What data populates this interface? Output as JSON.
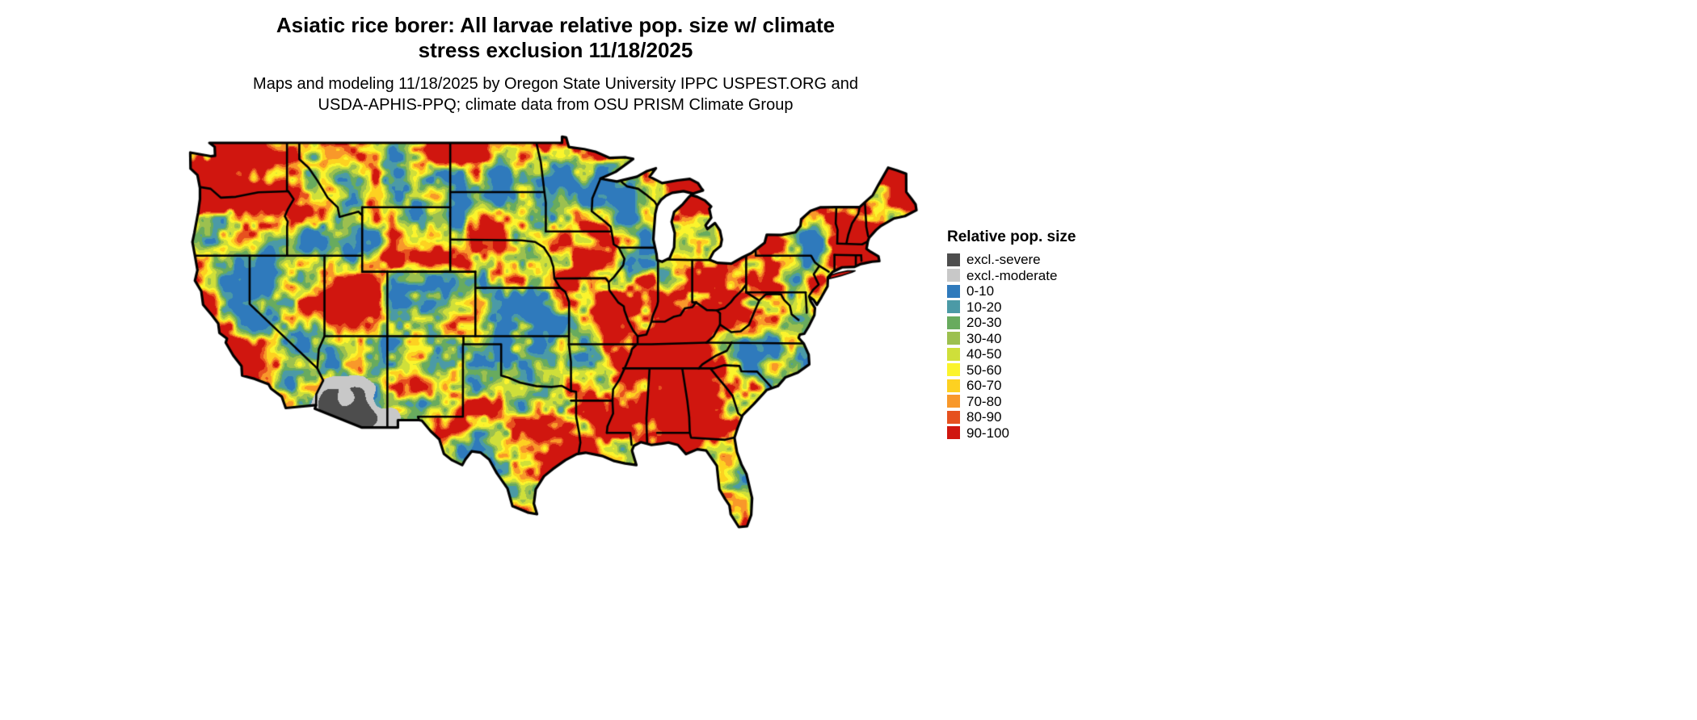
{
  "title": {
    "lines": [
      "Asiatic rice borer: All larvae relative pop. size w/ climate",
      "stress exclusion 11/18/2025"
    ]
  },
  "subtitle": {
    "lines": [
      "Maps and modeling 11/18/2025 by Oregon State University IPPC USPEST.ORG and",
      "USDA-APHIS-PPQ; climate data from OSU PRISM Climate Group"
    ]
  },
  "map": {
    "region": "Continental United States",
    "border_color": "#000000",
    "background": "#ffffff"
  },
  "legend": {
    "title": "Relative pop. size",
    "entries": [
      {
        "label": "excl.-severe",
        "color": "#4d4d4d"
      },
      {
        "label": "excl.-moderate",
        "color": "#c8c8c8"
      },
      {
        "label": "0-10",
        "color": "#2f7abc"
      },
      {
        "label": "10-20",
        "color": "#4b9aa6"
      },
      {
        "label": "20-30",
        "color": "#68ab5e"
      },
      {
        "label": "30-40",
        "color": "#9cc04f"
      },
      {
        "label": "40-50",
        "color": "#cfdf3a"
      },
      {
        "label": "50-60",
        "color": "#fbf42c"
      },
      {
        "label": "60-70",
        "color": "#fdd121"
      },
      {
        "label": "70-80",
        "color": "#f8982a"
      },
      {
        "label": "80-90",
        "color": "#e6511f"
      },
      {
        "label": "90-100",
        "color": "#d0160f"
      }
    ]
  }
}
